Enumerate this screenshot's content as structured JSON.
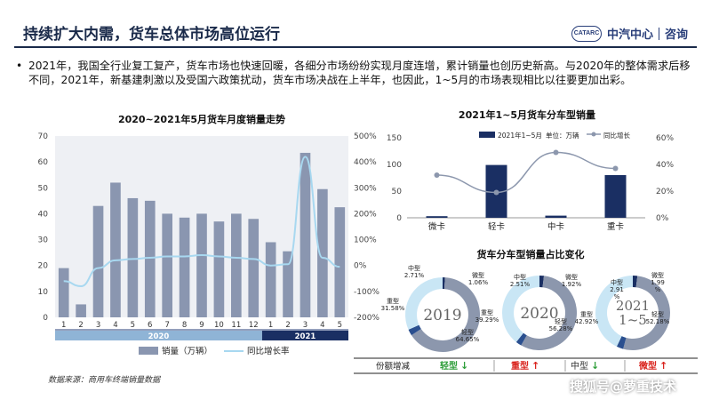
{
  "page": {
    "title": "持续扩大内需，货车总体市场高位运行",
    "logo_mark": "CATARC",
    "logo_brand": "中汽中心",
    "logo_section": "咨询",
    "bullet": "•",
    "paragraph": "2021年，我国全行业复工复产，货车市场也快速回暖，各细分市场纷纷实现月度连增，累计销量也创历史新高。与2020年的整体需求后移不同，2021年，新基建刺激以及受国六政策扰动，货车市场决战在上半年，也因此，1~5月的市场表现相比以往要更加出彩。",
    "source": "数据来源：商用车终端销量数据",
    "corner_watermark": "搜狐号@萝重技术",
    "accent_dark": "#1a2f63",
    "bar_gray": "#8a96b0",
    "line_light": "#a8d8f0"
  },
  "chart_data": [
    {
      "type": "bar",
      "title": "2020~2021年5月货车月度销量走势",
      "categories": [
        "1",
        "2",
        "3",
        "4",
        "5",
        "6",
        "7",
        "8",
        "9",
        "10",
        "11",
        "12",
        "1",
        "2",
        "3",
        "4",
        "5"
      ],
      "groups": [
        {
          "label": "2020",
          "span": [
            0,
            11
          ]
        },
        {
          "label": "2021",
          "span": [
            12,
            16
          ]
        }
      ],
      "series": [
        {
          "name": "销量（万辆）",
          "type": "bar",
          "axis": "left",
          "values": [
            19,
            5,
            43,
            52,
            46,
            45,
            40,
            38.5,
            40,
            37,
            40,
            38,
            29,
            25.5,
            63.5,
            49.5,
            42.5
          ]
        },
        {
          "name": "同比增长率",
          "type": "line",
          "axis": "right",
          "values": [
            -60,
            -80,
            -10,
            20,
            25,
            30,
            35,
            35,
            40,
            35,
            30,
            25,
            0,
            5,
            420,
            30,
            -5
          ]
        }
      ],
      "ylim_left": [
        0,
        70
      ],
      "yticks_left": [
        "0",
        "10",
        "20",
        "30",
        "40",
        "50",
        "60",
        "70"
      ],
      "ylim_right": [
        -200,
        500
      ],
      "yticks_right": [
        "-200%",
        "-100%",
        "0%",
        "100%",
        "200%",
        "300%",
        "400%",
        "500%"
      ]
    },
    {
      "type": "bar",
      "title": "2021年1~5月货车分车型销量",
      "categories": [
        "微卡",
        "轻卡",
        "中卡",
        "重卡"
      ],
      "series": [
        {
          "name": "2021年1~5月",
          "type": "bar",
          "axis": "left",
          "values": [
            3,
            99,
            4,
            80
          ]
        },
        {
          "name": "同比增长",
          "type": "line",
          "axis": "right",
          "values": [
            32,
            19,
            49,
            37
          ]
        }
      ],
      "unit_note": "单位：万辆",
      "ylim_left": [
        0,
        150
      ],
      "yticks_left": [
        "0",
        "50",
        "100",
        "150"
      ],
      "ylim_right": [
        0,
        60
      ],
      "yticks_right": [
        "0%",
        "20%",
        "40%",
        "60%"
      ]
    },
    {
      "type": "pie",
      "title": "货车分车型销量占比变化",
      "donuts": [
        {
          "year": "2019",
          "center": "2019",
          "slices": [
            {
              "name": "微型",
              "value": 1.06,
              "label": "微型\n1.06%"
            },
            {
              "name": "轻型",
              "value": 64.65,
              "label": "轻型\n64.65%"
            },
            {
              "name": "中型",
              "value": 2.71,
              "label": "中型\n2.71%"
            },
            {
              "name": "重型",
              "value": 31.58,
              "label": "重型\n31.58%"
            }
          ]
        },
        {
          "year": "2020",
          "center": "2020",
          "slices": [
            {
              "name": "微型",
              "value": 1.92,
              "label": "微型\n1.92%"
            },
            {
              "name": "轻型",
              "value": 56.28,
              "label": "轻型\n56.28%"
            },
            {
              "name": "中型",
              "value": 2.51,
              "label": "中型\n2.51%"
            },
            {
              "name": "重型",
              "value": 39.29,
              "label": "重型\n39.29%"
            }
          ]
        },
        {
          "year": "2021",
          "center": "2021\n1~5",
          "slices": [
            {
              "name": "微型",
              "value": 1.99,
              "label": "微型\n1.99\n%"
            },
            {
              "name": "轻型",
              "value": 52.18,
              "label": "轻型\n52.18%"
            },
            {
              "name": "中型",
              "value": 2.91,
              "label": "中型\n2.91\n%"
            },
            {
              "name": "重型",
              "value": 42.92,
              "label": "重型\n42.92%"
            }
          ]
        }
      ],
      "share_row": {
        "label": "份额增减",
        "items": [
          {
            "text": "轻型",
            "arrow": "↓",
            "color": "#2e9e3a"
          },
          {
            "text": "重型",
            "arrow": "↑",
            "color": "#d9231d"
          },
          {
            "text": "中型",
            "arrow": "↓",
            "color": "#2e9e3a"
          },
          {
            "text": "微型",
            "arrow": "↑",
            "color": "#d9231d"
          }
        ]
      }
    }
  ]
}
